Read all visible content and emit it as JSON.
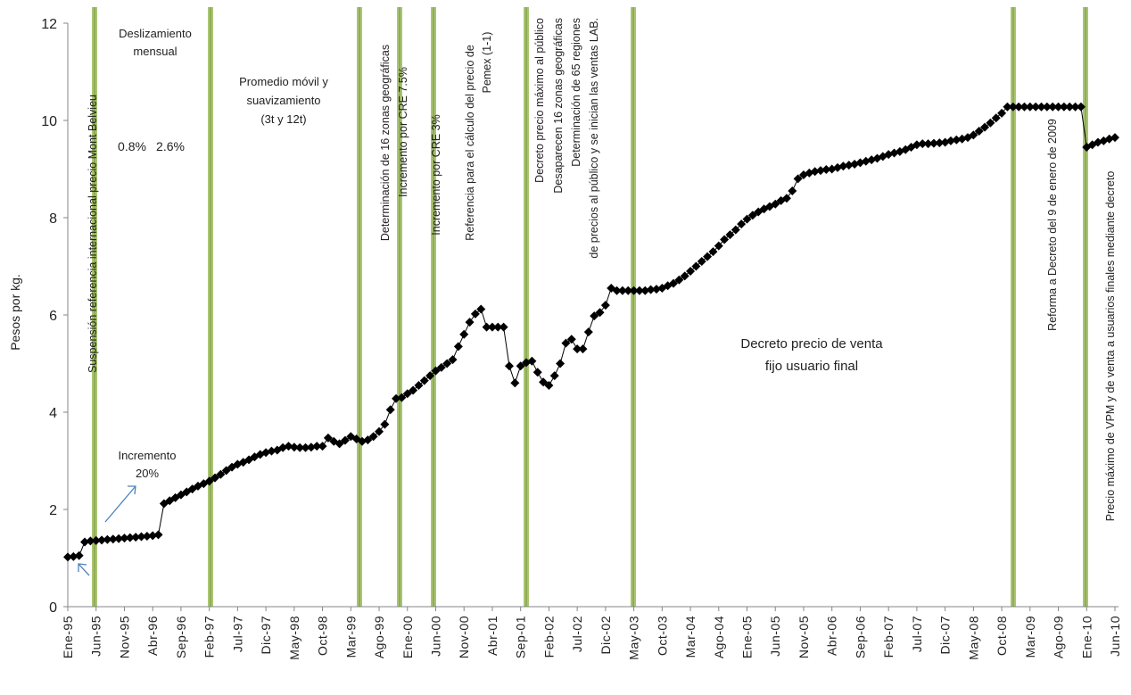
{
  "chart_data": {
    "type": "line",
    "y_label": "Pesos por kg.",
    "color": "#000000",
    "marker": "diamond",
    "ylim": [
      0,
      12
    ],
    "yticks": [
      0,
      2,
      4,
      6,
      8,
      10,
      12
    ],
    "grid": false,
    "categories": [
      "Ene-95",
      null,
      null,
      null,
      null,
      "Jun-95",
      null,
      null,
      null,
      null,
      "Nov-95",
      null,
      null,
      null,
      null,
      "Abr-96",
      null,
      null,
      null,
      null,
      "Sep-96",
      null,
      null,
      null,
      null,
      "Feb-97",
      null,
      null,
      null,
      null,
      "Jul-97",
      null,
      null,
      null,
      null,
      "Dic-97",
      null,
      null,
      null,
      null,
      "May-98",
      null,
      null,
      null,
      null,
      "Oct-98",
      null,
      null,
      null,
      null,
      "Mar-99",
      null,
      null,
      null,
      null,
      "Ago-99",
      null,
      null,
      null,
      null,
      "Ene-00",
      null,
      null,
      null,
      null,
      "Jun-00",
      null,
      null,
      null,
      null,
      "Nov-00",
      null,
      null,
      null,
      null,
      "Abr-01",
      null,
      null,
      null,
      null,
      "Sep-01",
      null,
      null,
      null,
      null,
      "Feb-02",
      null,
      null,
      null,
      null,
      "Jul-02",
      null,
      null,
      null,
      null,
      "Dic-02",
      null,
      null,
      null,
      null,
      "May-03",
      null,
      null,
      null,
      null,
      "Oct-03",
      null,
      null,
      null,
      null,
      "Mar-04",
      null,
      null,
      null,
      null,
      "Ago-04",
      null,
      null,
      null,
      null,
      "Ene-05",
      null,
      null,
      null,
      null,
      "Jun-05",
      null,
      null,
      null,
      null,
      "Nov-05",
      null,
      null,
      null,
      null,
      "Abr-06",
      null,
      null,
      null,
      null,
      "Sep-06",
      null,
      null,
      null,
      null,
      "Feb-07",
      null,
      null,
      null,
      null,
      "Jul-07",
      null,
      null,
      null,
      null,
      "Dic-07",
      null,
      null,
      null,
      null,
      "May-08",
      null,
      null,
      null,
      null,
      "Oct-08",
      null,
      null,
      null,
      null,
      "Mar-09",
      null,
      null,
      null,
      null,
      "Ago-09",
      null,
      null,
      null,
      null,
      "Ene-10",
      null,
      null,
      null,
      null,
      "Jun-10"
    ],
    "values": [
      1.02,
      1.03,
      1.05,
      1.33,
      1.35,
      1.36,
      1.37,
      1.38,
      1.39,
      1.4,
      1.41,
      1.42,
      1.43,
      1.44,
      1.45,
      1.46,
      1.48,
      2.12,
      2.18,
      2.24,
      2.3,
      2.36,
      2.42,
      2.48,
      2.53,
      2.58,
      2.65,
      2.72,
      2.8,
      2.87,
      2.93,
      2.97,
      3.02,
      3.08,
      3.13,
      3.17,
      3.2,
      3.22,
      3.27,
      3.3,
      3.28,
      3.27,
      3.27,
      3.28,
      3.3,
      3.3,
      3.47,
      3.4,
      3.35,
      3.42,
      3.5,
      3.45,
      3.4,
      3.43,
      3.5,
      3.6,
      3.75,
      4.05,
      4.28,
      4.3,
      4.38,
      4.45,
      4.55,
      4.65,
      4.75,
      4.85,
      4.92,
      5.0,
      5.08,
      5.35,
      5.6,
      5.85,
      6.02,
      6.12,
      5.75,
      5.75,
      5.75,
      5.75,
      4.95,
      4.6,
      4.95,
      5.02,
      5.05,
      4.82,
      4.62,
      4.55,
      4.75,
      5.0,
      5.42,
      5.5,
      5.3,
      5.3,
      5.65,
      5.98,
      6.05,
      6.2,
      6.55,
      6.5,
      6.5,
      6.5,
      6.5,
      6.5,
      6.5,
      6.52,
      6.53,
      6.55,
      6.6,
      6.65,
      6.72,
      6.8,
      6.9,
      7.0,
      7.1,
      7.2,
      7.3,
      7.42,
      7.55,
      7.65,
      7.75,
      7.87,
      7.97,
      8.05,
      8.12,
      8.18,
      8.23,
      8.28,
      8.35,
      8.4,
      8.55,
      8.8,
      8.88,
      8.92,
      8.95,
      8.97,
      8.99,
      9.0,
      9.03,
      9.06,
      9.08,
      9.1,
      9.13,
      9.16,
      9.19,
      9.22,
      9.26,
      9.3,
      9.33,
      9.36,
      9.4,
      9.45,
      9.5,
      9.52,
      9.52,
      9.53,
      9.54,
      9.55,
      9.58,
      9.6,
      9.62,
      9.65,
      9.7,
      9.78,
      9.86,
      9.95,
      10.05,
      10.15,
      10.28,
      10.28,
      10.28,
      10.28,
      10.28,
      10.28,
      10.28,
      10.28,
      10.28,
      10.28,
      10.28,
      10.28,
      10.28,
      10.28,
      9.45,
      9.5,
      9.55,
      9.58,
      9.62,
      9.65
    ],
    "annotations": {
      "desliz": [
        "Deslizamiento",
        "mensual"
      ],
      "pcts": [
        "0.8%",
        "2.6%"
      ],
      "promedio": [
        "Promedio móvil y",
        "suavizamiento",
        "(3t y 12t)"
      ],
      "incremento": [
        "Incremento",
        "20%"
      ],
      "decreto_fijo": [
        "Decreto precio de venta",
        "fijo usuario final"
      ],
      "suspension": "Suspensión referencia internacional precio Mont Belvieu",
      "zonas": [
        "Determinación de 16 zonas geográficas",
        "Incremento por CRE 7.5%"
      ],
      "cre3": "Incremento por CRE 3%",
      "referencia": [
        "Referencia para el cálculo del precio de",
        "Pemex (1-1)"
      ],
      "decreto_max": [
        "Decreto precio máximo al público",
        "Desaparecen 16 zonas geográficas",
        "Determinación de 65 regiones",
        "de precios al público y se inician las ventas LAB."
      ],
      "reforma": "Reforma a Decreto del 9 de enero de 2009",
      "vpm": "Precio máximo de VPM y de venta a usuarios finales mediante decreto"
    }
  }
}
